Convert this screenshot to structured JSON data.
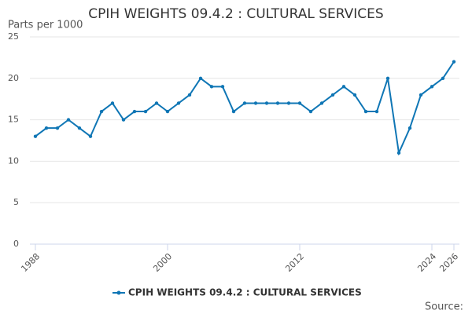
{
  "chart_data": {
    "type": "line",
    "title": "CPIH WEIGHTS 09.4.2 : CULTURAL SERVICES",
    "y_label": "Parts per 1000",
    "source": "Source:",
    "x": [
      1988,
      1989,
      1990,
      1991,
      1992,
      1993,
      1994,
      1995,
      1996,
      1997,
      1998,
      1999,
      2000,
      2001,
      2002,
      2003,
      2004,
      2005,
      2006,
      2007,
      2008,
      2009,
      2010,
      2011,
      2012,
      2013,
      2014,
      2015,
      2016,
      2017,
      2018,
      2019,
      2020,
      2021,
      2022,
      2023,
      2024,
      2025,
      2026
    ],
    "series": [
      {
        "name": "CPIH WEIGHTS 09.4.2 : CULTURAL SERVICES",
        "color": "#0f76b5",
        "values": [
          13,
          14,
          14,
          15,
          14,
          13,
          16,
          17,
          15,
          16,
          16,
          17,
          16,
          17,
          18,
          20,
          19,
          19,
          16,
          17,
          17,
          17,
          17,
          17,
          17,
          16,
          17,
          18,
          19,
          18,
          16,
          16,
          20,
          11,
          14,
          18,
          19,
          20,
          22
        ]
      }
    ],
    "xlim": [
      1988,
      2026
    ],
    "xticks": [
      1988,
      2000,
      2012,
      2024,
      2026
    ],
    "ylim": [
      0,
      25
    ],
    "yticks": [
      0,
      5,
      10,
      15,
      20,
      25
    ],
    "grid": true
  }
}
